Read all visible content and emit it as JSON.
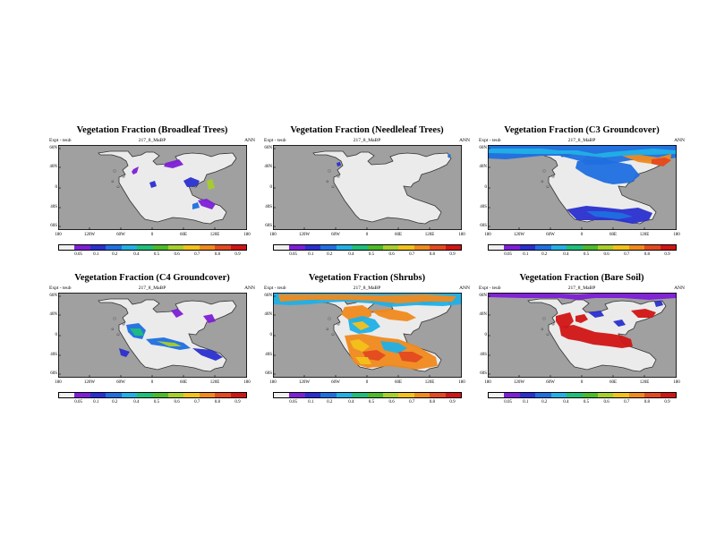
{
  "figure": {
    "panels": [
      {
        "title": "Vegetation Fraction (Broadleaf Trees)",
        "expt": "Expt - teub",
        "run": "217_8_MaBP",
        "season": "ANN",
        "first_tick": "0.05"
      },
      {
        "title": "Vegetation Fraction (Needleleaf Trees)",
        "expt": "Expt - teub",
        "run": "217_8_MaBP",
        "season": "ANN",
        "first_tick": "0.05"
      },
      {
        "title": "Vegetation Fraction (C3 Groundcover)",
        "expt": "Expt - teub",
        "run": "217_8_MaBP",
        "season": "ANN",
        "first_tick": "0.05"
      },
      {
        "title": "Vegetation Fraction (C4 Groundcover)",
        "expt": "Expt - teub",
        "run": "217_8_MaBP",
        "season": "ANN",
        "first_tick": "0.05"
      },
      {
        "title": "Vegetation Fraction (Shrubs)",
        "expt": "Expt - teub",
        "run": "217_8_MaBP",
        "season": "ANN",
        "first_tick": "0.05"
      },
      {
        "title": "Vegetation Fraction (Bare Soil)",
        "expt": "Expt - teub",
        "run": "217_8_MaBP",
        "season": "ANN",
        "first_tick": "0.05"
      }
    ],
    "lat_labels": [
      "60N",
      "40N",
      "0",
      "40S",
      "60S"
    ],
    "lon_labels": [
      "180",
      "120W",
      "60W",
      "0",
      "60E",
      "120E",
      "180"
    ],
    "colorbar_ticks": [
      "0.1",
      "0.2",
      "0.4",
      "0.5",
      "0.6",
      "0.7",
      "0.8",
      "0.9"
    ],
    "colorbar_colors": [
      "#f0f0f0",
      "#7d1fd6",
      "#2a2fcf",
      "#1f6fe0",
      "#21b0e6",
      "#1dbf7a",
      "#4cbb2a",
      "#a7cf2b",
      "#f2c21a",
      "#f08a1d",
      "#e34a1f",
      "#d11515"
    ],
    "ocean_color": "#a0a0a0",
    "land_color": "#ebebeb"
  }
}
